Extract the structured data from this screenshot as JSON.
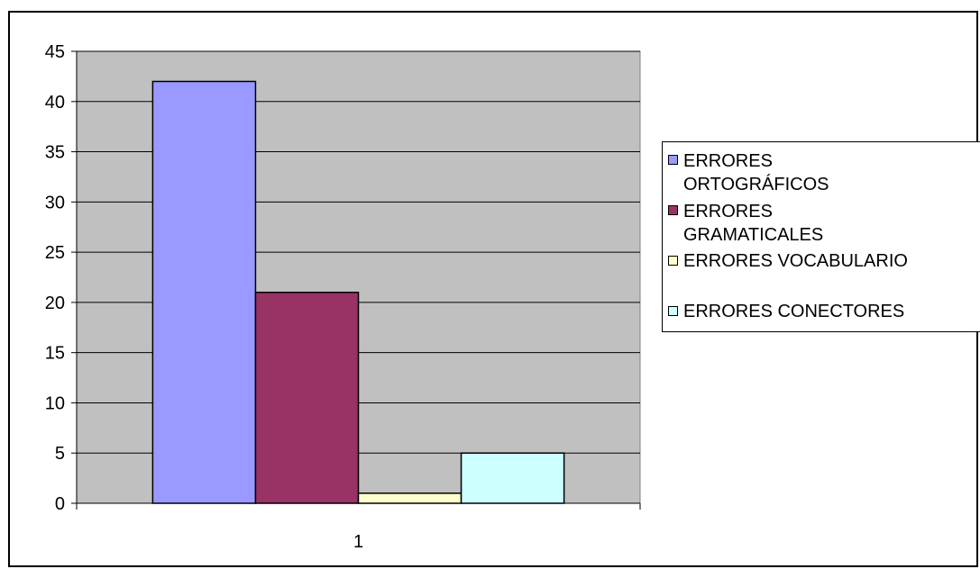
{
  "chart_data": {
    "type": "bar",
    "categories": [
      "1"
    ],
    "series": [
      {
        "name": "ERRORES ORTOGRÁFICOS",
        "values": [
          42
        ],
        "color": "#9999ff"
      },
      {
        "name": "ERRORES GRAMATICALES",
        "values": [
          21
        ],
        "color": "#993366"
      },
      {
        "name": "ERRORES VOCABULARIO",
        "values": [
          1
        ],
        "color": "#ffffcc"
      },
      {
        "name": "ERRORES CONECTORES",
        "values": [
          5
        ],
        "color": "#ccffff"
      }
    ],
    "ylim": [
      0,
      45
    ],
    "yticks": [
      0,
      5,
      10,
      15,
      20,
      25,
      30,
      35,
      40,
      45
    ],
    "grid": true,
    "legend": "right",
    "plot_background": "#c0c0c0"
  }
}
